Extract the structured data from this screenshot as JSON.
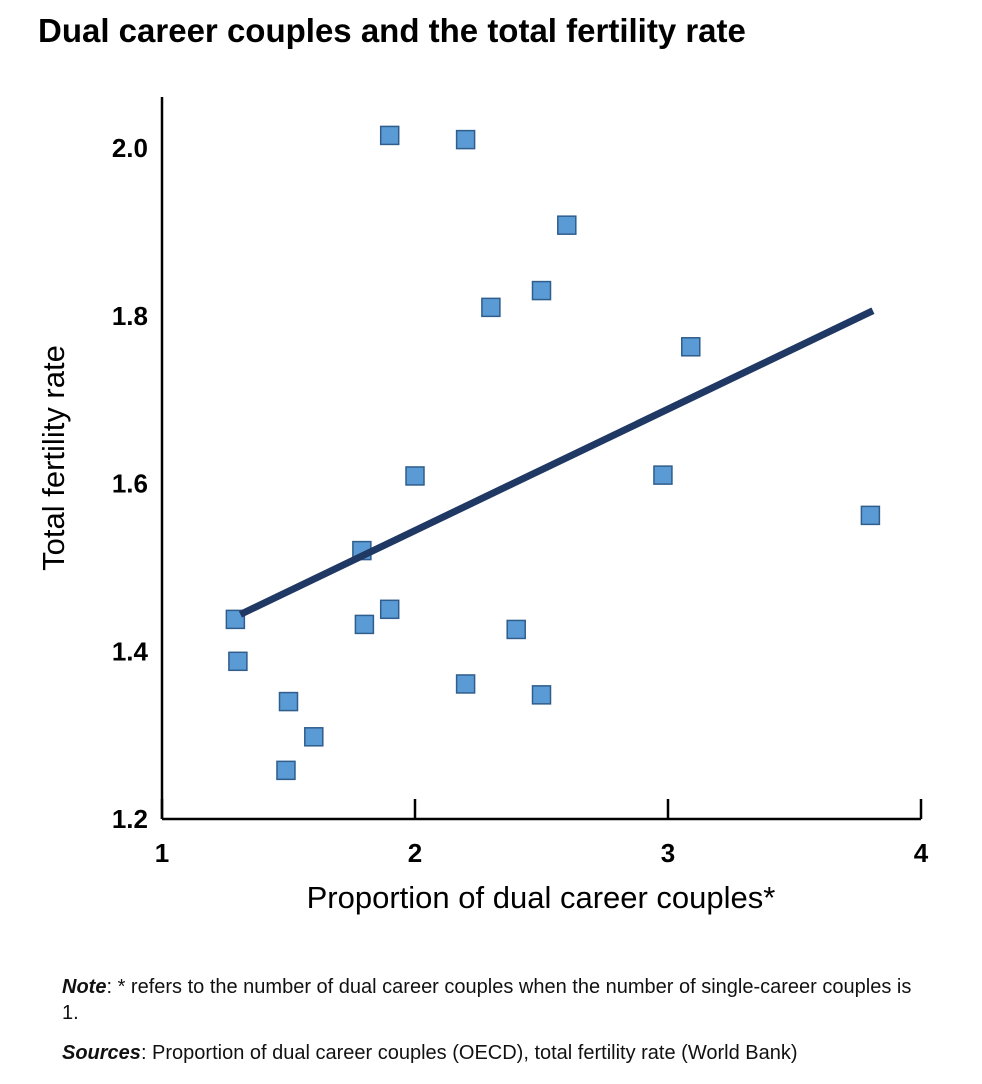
{
  "chart_data": {
    "type": "scatter",
    "title": "Dual career couples and the total fertility rate",
    "xlabel": "Proportion of dual career couples*",
    "ylabel": "Total fertility rate",
    "xlim": [
      1,
      4
    ],
    "ylim": [
      1.2,
      2.06
    ],
    "xticks": [
      1,
      2,
      3,
      4
    ],
    "xtick_labels": [
      "1",
      "2",
      "3",
      "4"
    ],
    "yticks": [
      1.2,
      1.4,
      1.6,
      1.8,
      2.0
    ],
    "ytick_labels": [
      "1.2",
      "1.4",
      "1.6",
      "1.8",
      "2.0"
    ],
    "grid": false,
    "points": [
      {
        "x": 1.9,
        "y": 2.015
      },
      {
        "x": 2.2,
        "y": 2.01
      },
      {
        "x": 2.6,
        "y": 1.908
      },
      {
        "x": 2.5,
        "y": 1.83
      },
      {
        "x": 2.3,
        "y": 1.81
      },
      {
        "x": 3.09,
        "y": 1.763
      },
      {
        "x": 2.0,
        "y": 1.609
      },
      {
        "x": 2.98,
        "y": 1.61
      },
      {
        "x": 3.8,
        "y": 1.562
      },
      {
        "x": 1.79,
        "y": 1.52
      },
      {
        "x": 1.29,
        "y": 1.438
      },
      {
        "x": 1.9,
        "y": 1.45
      },
      {
        "x": 1.8,
        "y": 1.432
      },
      {
        "x": 2.4,
        "y": 1.426
      },
      {
        "x": 1.3,
        "y": 1.388
      },
      {
        "x": 2.2,
        "y": 1.361
      },
      {
        "x": 2.5,
        "y": 1.348
      },
      {
        "x": 1.5,
        "y": 1.34
      },
      {
        "x": 1.6,
        "y": 1.298
      },
      {
        "x": 1.49,
        "y": 1.258
      }
    ],
    "trendline": {
      "x": [
        1.31,
        3.81
      ],
      "y": [
        1.444,
        1.806
      ]
    },
    "colors": {
      "marker": "#5b9bd5",
      "marker_edge": "#2f5d8c",
      "trendline": "#1f3864"
    }
  },
  "note": {
    "note_label": "Note",
    "note_text": ": * refers to the number of dual career couples when the number of single-career couples is 1.",
    "sources_label": "Sources",
    "sources_text": ": Proportion of dual career couples (OECD), total fertility rate (World Bank)"
  }
}
